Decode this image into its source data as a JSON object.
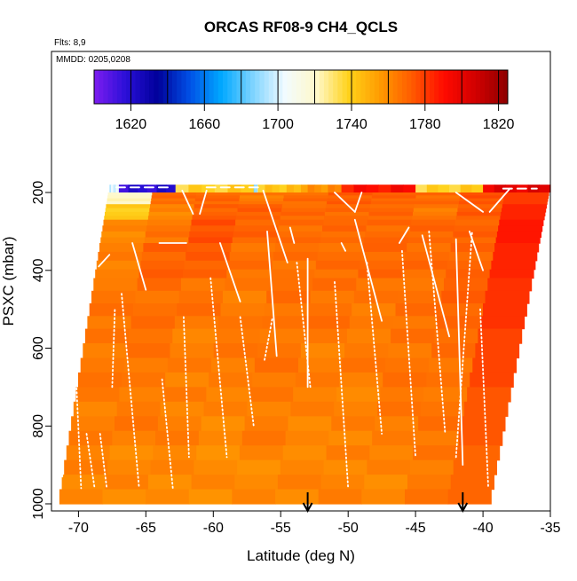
{
  "chart_data": {
    "type": "heatmap",
    "title": "ORCAS RF08-9 CH4_QCLS",
    "notes": [
      "Flts: 8,9",
      "MMDD: 0205,0208"
    ],
    "xlabel": "Latitude (deg N)",
    "ylabel": "PSXC (mbar)",
    "xlim": [
      -72,
      -35
    ],
    "ylim": [
      1000,
      150
    ],
    "y_inverted": true,
    "xticks": [
      -70,
      -65,
      -60,
      -55,
      -50,
      -45,
      -40,
      -35
    ],
    "yticks": [
      200,
      400,
      600,
      800,
      1000
    ],
    "grid": false,
    "colorbar": {
      "range": [
        1600,
        1825
      ],
      "ticks": [
        1620,
        1660,
        1700,
        1740,
        1780,
        1820
      ],
      "colors": [
        "#7d1df0",
        "#2a0fd8",
        "#00009a",
        "#0050e6",
        "#00a8ff",
        "#7fd4ff",
        "#f2fbff",
        "#fff8c8",
        "#ffd21a",
        "#ff9a00",
        "#ff5a00",
        "#ff0a00",
        "#d10000",
        "#8c0000"
      ]
    },
    "markers": {
      "label": "arrow",
      "latitudes": [
        -53,
        -41.5
      ]
    },
    "data_envelope": {
      "bottom_left_lat": -71.5,
      "top_left_lat": -67.7,
      "top_right_lat": -35,
      "bottom_right_lat": -39.5,
      "top_pressure": 180,
      "bottom_pressure": 1000
    },
    "upper_layer": {
      "pressure_top": 180,
      "pressure_bottom": 200,
      "segments": [
        {
          "lat_start": -67.7,
          "lat_end": -67.0,
          "ch4": 1700
        },
        {
          "lat_start": -67.0,
          "lat_end": -62.8,
          "ch4": 1618
        },
        {
          "lat_start": -62.8,
          "lat_end": -57.0,
          "ch4": 1738
        },
        {
          "lat_start": -57.0,
          "lat_end": -56.7,
          "ch4": 1690
        },
        {
          "lat_start": -56.7,
          "lat_end": -53.5,
          "ch4": 1742
        },
        {
          "lat_start": -53.5,
          "lat_end": -50.5,
          "ch4": 1758
        },
        {
          "lat_start": -50.5,
          "lat_end": -45.0,
          "ch4": 1790
        },
        {
          "lat_start": -45.0,
          "lat_end": -40.0,
          "ch4": 1738
        },
        {
          "lat_start": -40.0,
          "lat_end": -35.0,
          "ch4": 1800
        }
      ]
    },
    "layer_values": [
      {
        "p_top": 200,
        "p_bottom": 230,
        "values": [
          1722,
          1768,
          1770,
          1765,
          1768,
          1772,
          1772,
          1768,
          1775,
          1780
        ]
      },
      {
        "p_top": 230,
        "p_bottom": 270,
        "values": [
          1740,
          1762,
          1770,
          1772,
          1770,
          1768,
          1770,
          1765,
          1772,
          1785
        ]
      },
      {
        "p_top": 270,
        "p_bottom": 330,
        "values": [
          1760,
          1766,
          1776,
          1770,
          1768,
          1770,
          1768,
          1770,
          1772,
          1788
        ]
      },
      {
        "p_top": 330,
        "p_bottom": 420,
        "values": [
          1764,
          1770,
          1772,
          1768,
          1766,
          1768,
          1770,
          1768,
          1770,
          1785
        ]
      },
      {
        "p_top": 420,
        "p_bottom": 550,
        "values": [
          1766,
          1768,
          1766,
          1764,
          1768,
          1766,
          1765,
          1768,
          1770,
          1782
        ]
      },
      {
        "p_top": 550,
        "p_bottom": 700,
        "values": [
          1764,
          1766,
          1764,
          1764,
          1766,
          1764,
          1764,
          1766,
          1768,
          1778
        ]
      },
      {
        "p_top": 700,
        "p_bottom": 850,
        "values": [
          1764,
          1764,
          1763,
          1762,
          1763,
          1762,
          1763,
          1764,
          1766,
          1774
        ]
      },
      {
        "p_top": 850,
        "p_bottom": 1000,
        "values": [
          1762,
          1762,
          1760,
          1760,
          1761,
          1761,
          1762,
          1762,
          1764,
          1770
        ]
      }
    ],
    "flight_tracks": [
      {
        "style": "dashed",
        "points": [
          [
            -67.2,
            187
          ],
          [
            -63.0,
            187
          ]
        ]
      },
      {
        "style": "dashed",
        "points": [
          [
            -60.5,
            187
          ],
          [
            -56.5,
            187
          ]
        ]
      },
      {
        "style": "dashed",
        "points": [
          [
            -38.5,
            190
          ],
          [
            -36.0,
            190
          ]
        ]
      },
      {
        "style": "solid",
        "points": [
          [
            -62.3,
            195
          ],
          [
            -61.5,
            255
          ]
        ]
      },
      {
        "style": "solid",
        "points": [
          [
            -60.5,
            195
          ],
          [
            -61.0,
            255
          ]
        ]
      },
      {
        "style": "solid",
        "points": [
          [
            -56.3,
            195
          ],
          [
            -54.5,
            380
          ]
        ]
      },
      {
        "style": "solid",
        "points": [
          [
            -51.0,
            200
          ],
          [
            -49.5,
            250
          ]
        ]
      },
      {
        "style": "solid",
        "points": [
          [
            -49.5,
            250
          ],
          [
            -49.0,
            200
          ]
        ]
      },
      {
        "style": "solid",
        "points": [
          [
            -42.0,
            200
          ],
          [
            -40.0,
            250
          ]
        ]
      },
      {
        "style": "solid",
        "points": [
          [
            -39.5,
            250
          ],
          [
            -38.0,
            190
          ]
        ]
      },
      {
        "style": "solid",
        "points": [
          [
            -68.5,
            390
          ],
          [
            -67.7,
            360
          ]
        ]
      },
      {
        "style": "solid",
        "points": [
          [
            -66.0,
            330
          ],
          [
            -65.0,
            450
          ]
        ]
      },
      {
        "style": "solid",
        "points": [
          [
            -64.0,
            330
          ],
          [
            -62.0,
            330
          ]
        ]
      },
      {
        "style": "solid",
        "points": [
          [
            -59.5,
            330
          ],
          [
            -58.0,
            480
          ]
        ]
      },
      {
        "style": "solid",
        "points": [
          [
            -56.0,
            300
          ],
          [
            -55.3,
            620
          ]
        ]
      },
      {
        "style": "solid",
        "points": [
          [
            -54.3,
            290
          ],
          [
            -54.0,
            330
          ]
        ]
      },
      {
        "style": "solid",
        "points": [
          [
            -53.0,
            370
          ],
          [
            -53.0,
            700
          ]
        ]
      },
      {
        "style": "solid",
        "points": [
          [
            -50.5,
            330
          ],
          [
            -50.2,
            350
          ]
        ]
      },
      {
        "style": "solid",
        "points": [
          [
            -49.5,
            270
          ],
          [
            -47.5,
            530
          ]
        ]
      },
      {
        "style": "solid",
        "points": [
          [
            -46.2,
            330
          ],
          [
            -45.5,
            290
          ]
        ]
      },
      {
        "style": "solid",
        "points": [
          [
            -44.5,
            310
          ],
          [
            -42.5,
            570
          ]
        ]
      },
      {
        "style": "solid",
        "points": [
          [
            -42.0,
            320
          ],
          [
            -41.5,
            900
          ]
        ]
      },
      {
        "style": "solid",
        "points": [
          [
            -41.0,
            300
          ],
          [
            -40.0,
            400
          ]
        ]
      },
      {
        "style": "dotted",
        "points": [
          [
            -71.2,
            930
          ],
          [
            -70.8,
            560
          ]
        ]
      },
      {
        "style": "dotted",
        "points": [
          [
            -70.3,
            580
          ],
          [
            -69.8,
            960
          ]
        ]
      },
      {
        "style": "dotted",
        "points": [
          [
            -69.4,
            820
          ],
          [
            -68.8,
            960
          ]
        ]
      },
      {
        "style": "dotted",
        "points": [
          [
            -68.4,
            820
          ],
          [
            -67.9,
            960
          ]
        ]
      },
      {
        "style": "dotted",
        "points": [
          [
            -67.5,
            700
          ],
          [
            -67.3,
            500
          ]
        ]
      },
      {
        "style": "dotted",
        "points": [
          [
            -66.8,
            460
          ],
          [
            -65.5,
            960
          ]
        ]
      },
      {
        "style": "dotted",
        "points": [
          [
            -63.8,
            680
          ],
          [
            -63.0,
            960
          ]
        ]
      },
      {
        "style": "dotted",
        "points": [
          [
            -62.2,
            520
          ],
          [
            -61.8,
            880
          ]
        ]
      },
      {
        "style": "dotted",
        "points": [
          [
            -60.2,
            420
          ],
          [
            -59.0,
            880
          ]
        ]
      },
      {
        "style": "dotted",
        "points": [
          [
            -58.0,
            520
          ],
          [
            -57.0,
            800
          ]
        ]
      },
      {
        "style": "dotted",
        "points": [
          [
            -56.2,
            630
          ],
          [
            -55.6,
            520
          ]
        ]
      },
      {
        "style": "dotted",
        "points": [
          [
            -53.8,
            380
          ],
          [
            -52.8,
            700
          ]
        ]
      },
      {
        "style": "dotted",
        "points": [
          [
            -51.0,
            430
          ],
          [
            -50.0,
            960
          ]
        ]
      },
      {
        "style": "dotted",
        "points": [
          [
            -48.6,
            380
          ],
          [
            -47.5,
            820
          ]
        ]
      },
      {
        "style": "dotted",
        "points": [
          [
            -46.0,
            350
          ],
          [
            -45.0,
            880
          ]
        ]
      },
      {
        "style": "dotted",
        "points": [
          [
            -44.0,
            300
          ],
          [
            -42.8,
            820
          ]
        ]
      },
      {
        "style": "dotted",
        "points": [
          [
            -42.0,
            880
          ],
          [
            -40.8,
            300
          ]
        ]
      },
      {
        "style": "dotted",
        "points": [
          [
            -40.2,
            500
          ],
          [
            -39.6,
            960
          ]
        ]
      }
    ]
  }
}
